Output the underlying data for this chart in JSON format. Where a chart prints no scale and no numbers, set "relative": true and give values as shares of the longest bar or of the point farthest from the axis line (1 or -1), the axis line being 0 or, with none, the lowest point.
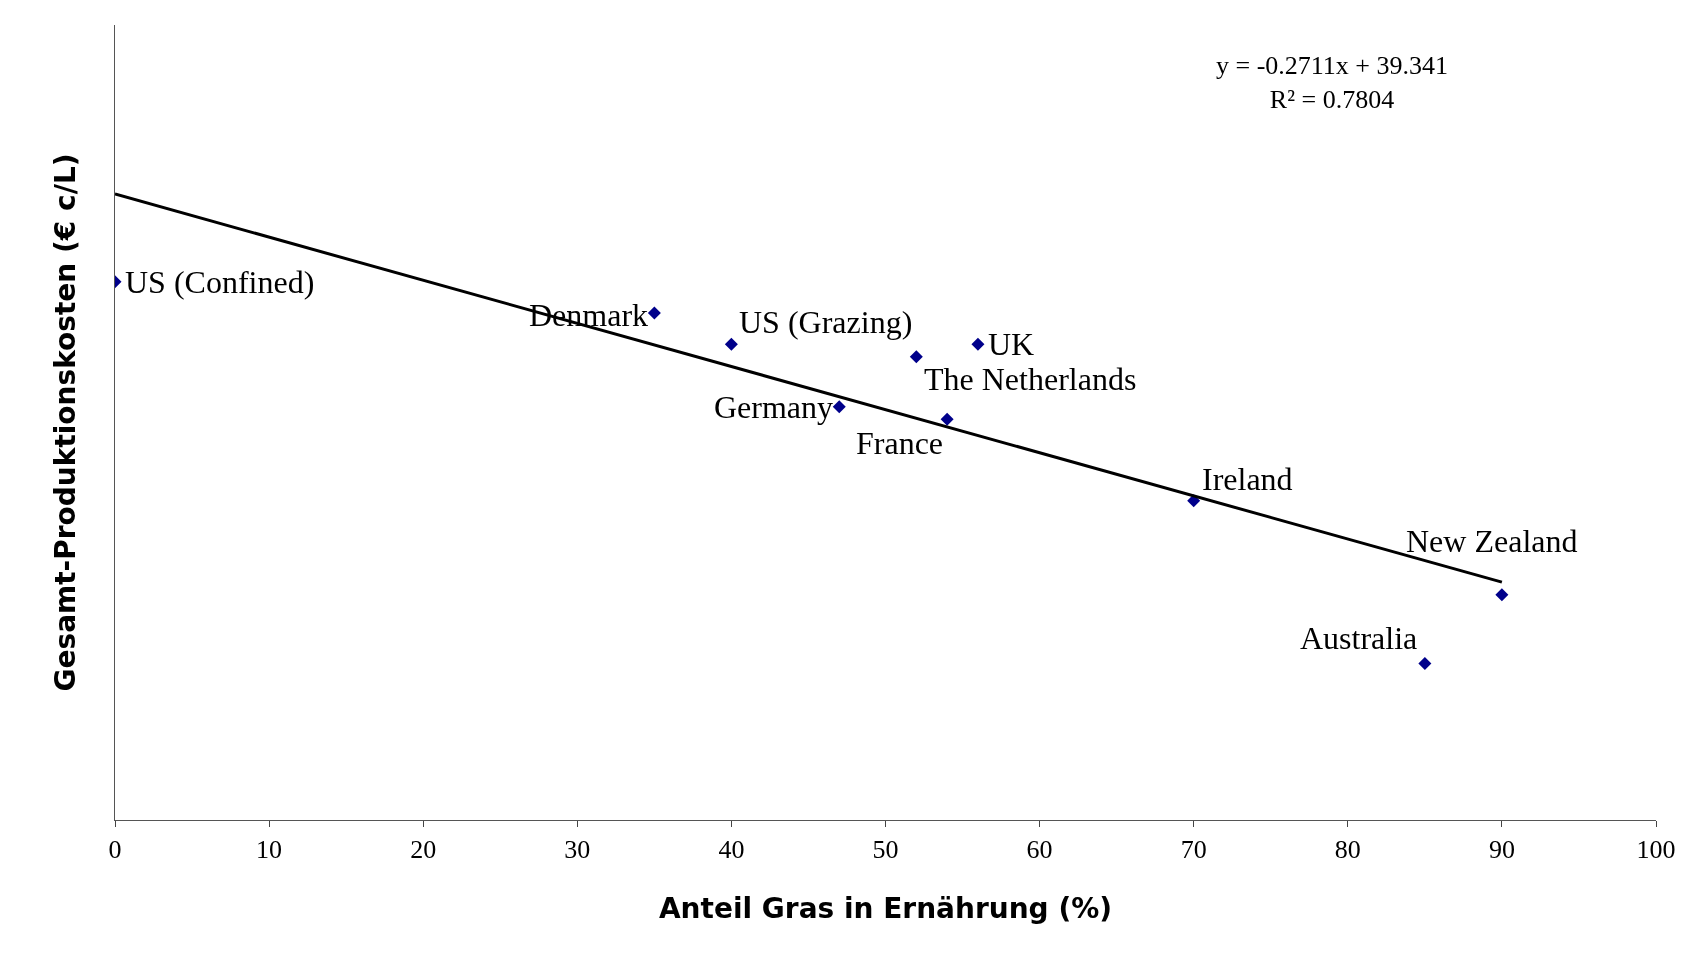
{
  "chart_data": {
    "type": "scatter",
    "xlabel": "Anteil Gras in Ernährung (%)",
    "ylabel": "Gesamt-Produktionskosten (€ c/L)",
    "relative": true,
    "series": [
      {
        "color": "#00008b",
        "x": [
          0,
          35,
          40,
          52,
          56,
          47,
          54,
          70,
          90,
          85
        ],
        "values": [
          0.86,
          0.81,
          0.76,
          0.74,
          0.76,
          0.66,
          0.64,
          0.51,
          0.36,
          0.25
        ],
        "marker": "diamond"
      },
      {
        "type": "line",
        "color": "#000000",
        "x": [
          0,
          90
        ],
        "values": [
          1,
          0.38
        ],
        "marker": "none",
        "line_style": "solid"
      }
    ],
    "xlim": [
      0,
      100
    ],
    "xticks": [
      0,
      10,
      20,
      30,
      40,
      50,
      60,
      70,
      80,
      90,
      100
    ],
    "annotations": [
      {
        "text": "US (Confined)",
        "x": 0,
        "y": 0.86
      },
      {
        "text": "Denmark",
        "x": 35,
        "y": 0.81
      },
      {
        "text": "US (Grazing)",
        "x": 40,
        "y": 0.76
      },
      {
        "text": "The Netherlands",
        "x": 52,
        "y": 0.74
      },
      {
        "text": "UK",
        "x": 56,
        "y": 0.76
      },
      {
        "text": "Germany",
        "x": 47,
        "y": 0.66
      },
      {
        "text": "France",
        "x": 54,
        "y": 0.64
      },
      {
        "text": "Ireland",
        "x": 70,
        "y": 0.51
      },
      {
        "text": "New Zealand",
        "x": 90,
        "y": 0.36
      },
      {
        "text": "Australia",
        "x": 85,
        "y": 0.25
      },
      "y = -0.2711x + 39.341\nR² = 0.7804"
    ]
  }
}
